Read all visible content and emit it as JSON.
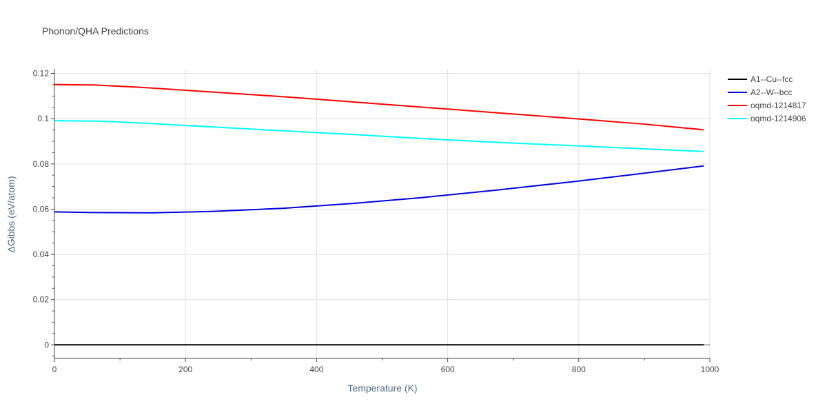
{
  "chart_data": {
    "type": "line",
    "title": "Phonon/QHA Predictions",
    "xlabel": "Temperature (K)",
    "ylabel": "ΔGibbs (eV/atom)",
    "xlim": [
      0,
      1000
    ],
    "ylim": [
      -0.006,
      0.122
    ],
    "x_ticks": [
      0,
      200,
      400,
      600,
      800,
      1000
    ],
    "x_tick_labels": [
      "0",
      "200",
      "400",
      "600",
      "800",
      "1000"
    ],
    "y_ticks": [
      0,
      0.02,
      0.04,
      0.06,
      0.08,
      0.1,
      0.12
    ],
    "y_tick_labels": [
      "0",
      "0.02",
      "0.04",
      "0.06",
      "0.08",
      "0.1",
      "0.12"
    ],
    "grid": true,
    "legend_position": "right",
    "series": [
      {
        "name": "A1--Cu--fcc",
        "color": "#000000",
        "x": [
          0,
          990
        ],
        "y": [
          0,
          0
        ]
      },
      {
        "name": "A2--W--bcc",
        "color": "#0000dd",
        "x": [
          0,
          60,
          150,
          240,
          350,
          450,
          560,
          670,
          790,
          900,
          990
        ],
        "y": [
          0.0588,
          0.0585,
          0.0584,
          0.059,
          0.0604,
          0.0624,
          0.0651,
          0.0683,
          0.0721,
          0.0759,
          0.0791
        ]
      },
      {
        "name": "oqmd-1214817",
        "color": "#ff0000",
        "x": [
          0,
          60,
          130,
          240,
          350,
          460,
          570,
          680,
          790,
          900,
          990
        ],
        "y": [
          0.1151,
          0.1149,
          0.1139,
          0.1118,
          0.1097,
          0.1073,
          0.1049,
          0.1025,
          0.1001,
          0.0976,
          0.0951
        ]
      },
      {
        "name": "oqmd-1214906",
        "color": "#00ffff",
        "x": [
          0,
          70,
          150,
          250,
          350,
          450,
          560,
          670,
          780,
          890,
          990
        ],
        "y": [
          0.0991,
          0.0989,
          0.0978,
          0.0962,
          0.0946,
          0.0931,
          0.0912,
          0.0896,
          0.0882,
          0.0868,
          0.0855
        ]
      }
    ]
  }
}
